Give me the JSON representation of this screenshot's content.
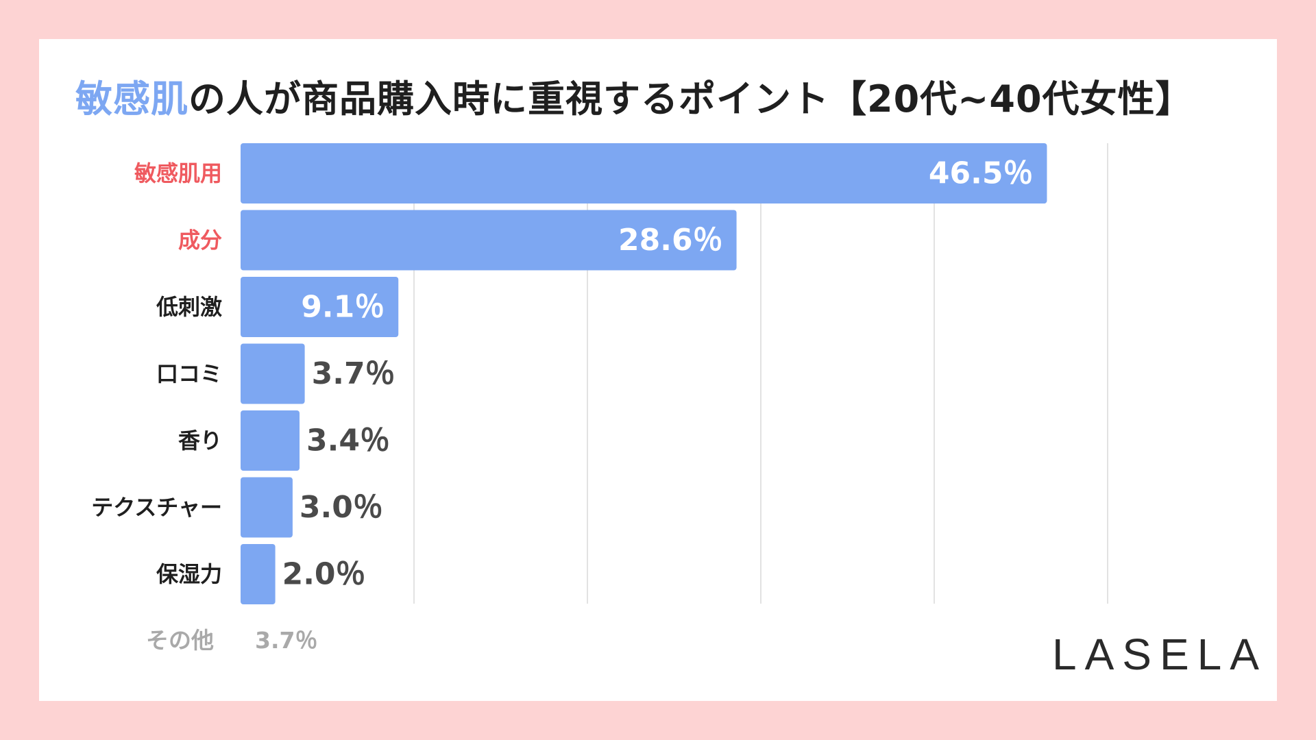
{
  "title": {
    "highlight": "敏感肌",
    "rest": "の人が商品購入時に重視するポイント【20代~40代女性】"
  },
  "colors": {
    "background": "#fdd3d3",
    "card": "#ffffff",
    "bar": "#7da7f2",
    "highlight_label": "#ef5a5f",
    "normal_label": "#1f1f1f",
    "inside_value": "#ffffff",
    "outside_value": "#4a4a4a",
    "muted": "#a9a9a9",
    "grid": "#d9d9d9"
  },
  "chart_data": {
    "type": "bar",
    "orientation": "horizontal",
    "categories": [
      "敏感肌用",
      "成分",
      "低刺激",
      "口コミ",
      "香り",
      "テクスチャー",
      "保湿力"
    ],
    "values": [
      46.5,
      28.6,
      9.1,
      3.7,
      3.4,
      3.0,
      2.0
    ],
    "value_labels": [
      "46.5％",
      "28.6％",
      "9.1％",
      "3.7％",
      "3.4％",
      "3.0％",
      "2.0％"
    ],
    "highlighted_categories": [
      0,
      1
    ],
    "unit": "％",
    "xlim": [
      0,
      50
    ],
    "grid_step": 10,
    "grid": true,
    "other": {
      "label": "その他",
      "value": 3.7,
      "value_label": "3.7％"
    }
  },
  "logo": "LASELA"
}
